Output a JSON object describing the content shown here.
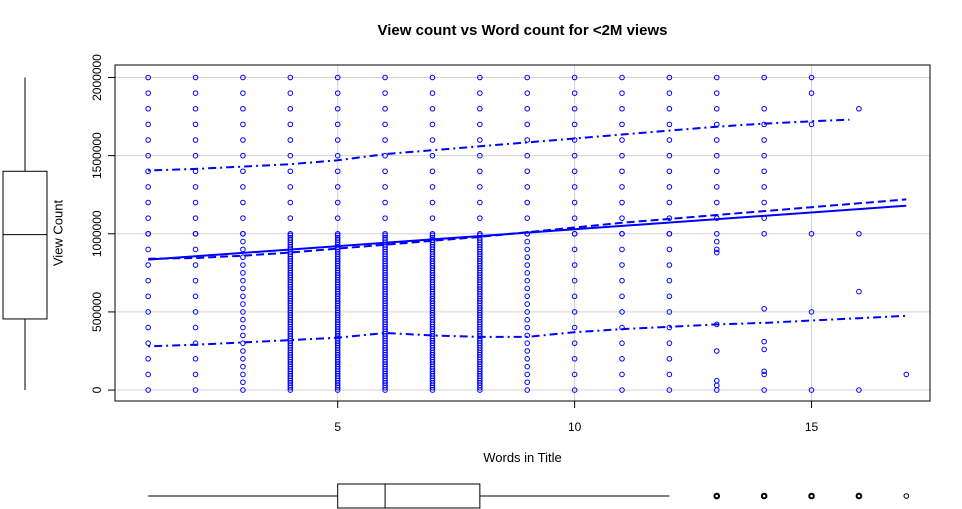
{
  "chart_data": {
    "type": "scatter",
    "title": "View count vs Word count for <2M views",
    "xlabel": "Words in Title",
    "ylabel": "View Count",
    "xlim": [
      0.3,
      17.5
    ],
    "ylim": [
      -70000,
      2080000
    ],
    "xticks": [
      5,
      10,
      15
    ],
    "yticks": [
      0,
      500000,
      1000000,
      1500000,
      2000000
    ],
    "xtick_labels": [
      "5",
      "10",
      "15"
    ],
    "ytick_labels": [
      "0",
      "500000",
      "1000000",
      "1500000",
      "2000000"
    ],
    "grid": true,
    "point_color": "#0000ff",
    "x_values": [
      1,
      2,
      3,
      4,
      5,
      6,
      7,
      8,
      9,
      10,
      11,
      12,
      13,
      14,
      15,
      16,
      17
    ],
    "scatter_points_sample": [
      {
        "x": 1,
        "y_range": [
          0,
          2000000
        ],
        "density": "medium"
      },
      {
        "x": 2,
        "y_range": [
          0,
          2000000
        ],
        "density": "medium"
      },
      {
        "x": 3,
        "y_range": [
          0,
          2000000
        ],
        "density": "high"
      },
      {
        "x": 4,
        "y_range": [
          0,
          2000000
        ],
        "density": "very high"
      },
      {
        "x": 5,
        "y_range": [
          0,
          2000000
        ],
        "density": "very high"
      },
      {
        "x": 6,
        "y_range": [
          0,
          2000000
        ],
        "density": "very high"
      },
      {
        "x": 7,
        "y_range": [
          0,
          2000000
        ],
        "density": "very high"
      },
      {
        "x": 8,
        "y_range": [
          0,
          2000000
        ],
        "density": "very high"
      },
      {
        "x": 9,
        "y_range": [
          0,
          2000000
        ],
        "density": "high"
      },
      {
        "x": 10,
        "y_range": [
          0,
          2000000
        ],
        "density": "medium"
      },
      {
        "x": 11,
        "y_range": [
          0,
          2000000
        ],
        "density": "medium"
      },
      {
        "x": 12,
        "y_range": [
          0,
          2000000
        ],
        "density": "low"
      },
      {
        "x": 13,
        "points": [
          0,
          30000,
          60000,
          250000,
          420000,
          880000,
          900000,
          950000,
          1000000,
          1100000,
          1200000,
          1300000,
          1400000,
          1500000,
          1600000,
          1700000,
          1800000,
          1900000,
          2000000
        ]
      },
      {
        "x": 14,
        "points": [
          0,
          100000,
          120000,
          260000,
          310000,
          520000,
          1000000,
          1100000,
          1200000,
          1300000,
          1400000,
          1500000,
          1600000,
          1700000,
          1800000,
          2000000
        ]
      },
      {
        "x": 15,
        "points": [
          0,
          500000,
          1000000,
          1700000,
          1900000,
          2000000
        ]
      },
      {
        "x": 16,
        "points": [
          0,
          630000,
          1000000,
          1800000
        ]
      },
      {
        "x": 17,
        "points": [
          100000
        ]
      }
    ],
    "lines": [
      {
        "style": "solid",
        "x": [
          1,
          17
        ],
        "y": [
          835000,
          1180000
        ]
      },
      {
        "style": "dashed",
        "x": [
          1,
          2,
          3,
          4,
          5,
          6,
          7,
          8,
          9,
          10,
          11,
          12,
          13,
          14,
          15,
          16,
          17
        ],
        "y": [
          840000,
          845000,
          860000,
          880000,
          905000,
          930000,
          955000,
          980000,
          1010000,
          1040000,
          1070000,
          1095000,
          1120000,
          1145000,
          1170000,
          1195000,
          1220000
        ]
      },
      {
        "style": "dotdash",
        "x": [
          1,
          2,
          3,
          4,
          5,
          6,
          7,
          8,
          9,
          10,
          11,
          12,
          13,
          14,
          15,
          15.8
        ],
        "y": [
          1405000,
          1415000,
          1430000,
          1445000,
          1470000,
          1510000,
          1535000,
          1560000,
          1585000,
          1610000,
          1635000,
          1660000,
          1685000,
          1705000,
          1720000,
          1730000
        ]
      },
      {
        "style": "dotdash",
        "x": [
          1,
          2,
          3,
          4,
          5,
          6,
          7,
          8,
          9,
          10,
          11,
          12,
          13,
          14,
          15,
          16,
          17
        ],
        "y": [
          280000,
          290000,
          305000,
          320000,
          335000,
          365000,
          350000,
          340000,
          340000,
          370000,
          390000,
          405000,
          420000,
          430000,
          445000,
          460000,
          475000
        ]
      }
    ],
    "y_boxplot": {
      "min": 0,
      "q1": 455000,
      "median": 995000,
      "q3": 1400000,
      "max": 2000000
    },
    "x_boxplot": {
      "min": 1,
      "q1": 5,
      "median": 6,
      "q3": 8,
      "max": 12,
      "outliers": [
        13,
        14,
        15,
        16,
        17
      ]
    }
  }
}
